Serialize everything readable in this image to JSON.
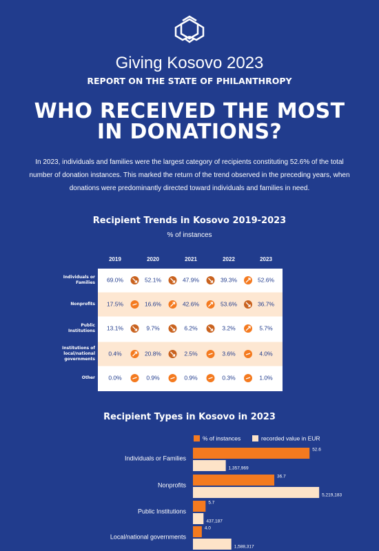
{
  "header": {
    "title": "Giving Kosovo 2023",
    "subtitle": "REPORT ON THE STATE OF PHILANTHROPY"
  },
  "headline": "WHO RECEIVED THE MOST IN DONATIONS?",
  "intro": "In 2023, individuals and families were the largest category of recipients constituting 52.6% of the total number of donation instances. This marked the return of the trend observed in the preceding years, when donations were predominantly directed toward individuals and families in need.",
  "table": {
    "title": "Recipient Trends in Kosovo 2019-2023",
    "subtitle": "% of instances",
    "columns": [
      "2019",
      "2020",
      "2021",
      "2022",
      "2023"
    ],
    "rows": [
      {
        "label": "Individuals or Families",
        "values": [
          "69.0%",
          "52.1%",
          "47.9%",
          "39.3%",
          "52.6%"
        ]
      },
      {
        "label": "Nonprofits",
        "values": [
          "17.5%",
          "16.6%",
          "42.6%",
          "53.6%",
          "36.7%"
        ]
      },
      {
        "label": "Public Institutions",
        "values": [
          "13.1%",
          "9.7%",
          "6.2%",
          "3.2%",
          "5.7%"
        ]
      },
      {
        "label": "Institutions of local/national governments",
        "values": [
          "0.4%",
          "20.8%",
          "2.5%",
          "3.6%",
          "4.0%"
        ]
      },
      {
        "label": "Other",
        "values": [
          "0.0%",
          "0.9%",
          "0.9%",
          "0.3%",
          "1.0%"
        ]
      }
    ]
  },
  "chart_data": {
    "type": "hbar",
    "title": "Recipient Types in Kosovo in 2023",
    "categories": [
      "Individuals or Families",
      "Nonprofits",
      "Public Institutions",
      "Local/national governments"
    ],
    "series": [
      {
        "name": "% of instances",
        "color": "#f47a1f",
        "values": [
          52.6,
          36.7,
          5.7,
          4.0
        ],
        "value_labels": [
          "52.6",
          "36.7",
          "5.7",
          "4.0"
        ]
      },
      {
        "name": "recorded value in EUR",
        "color": "#fde3c8",
        "axis": "x2",
        "values": [
          1357969,
          5219183,
          437187,
          1588317
        ],
        "value_labels": [
          "1,357,969",
          "5,219,183",
          "437,187",
          "1,588,317"
        ]
      }
    ],
    "xlim": [
      0,
      60
    ],
    "x2lim": [
      0,
      5500000
    ]
  }
}
